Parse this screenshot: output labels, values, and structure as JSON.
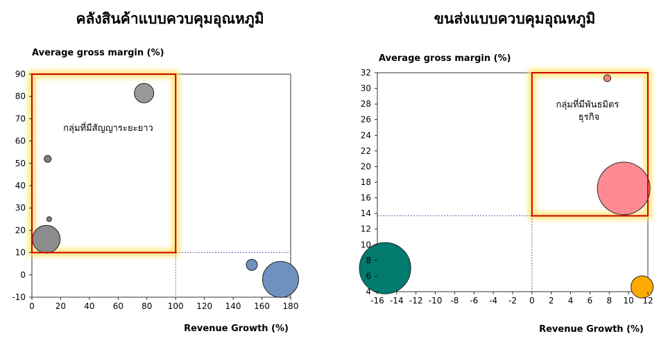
{
  "chart_data": [
    {
      "type": "bubble",
      "title": "คลังสินค้าแบบควบคุมอุณหภูมิ",
      "xlabel": "Revenue Growth (%)",
      "ylabel": "Average gross margin (%)",
      "xlim": [
        0,
        180
      ],
      "ylim": [
        -10,
        90
      ],
      "xticks": [
        0,
        20,
        40,
        60,
        80,
        100,
        120,
        140,
        160,
        180
      ],
      "yticks": [
        -10,
        0,
        10,
        20,
        30,
        40,
        50,
        60,
        70,
        80,
        90
      ],
      "grid": false,
      "reference_lines": {
        "x": 100,
        "y": 10
      },
      "highlight_region": {
        "x": [
          0,
          100
        ],
        "y": [
          10,
          90
        ],
        "label": "กลุ่มที่มีสัญญาระยะยาว"
      },
      "points": [
        {
          "x": 78,
          "y": 81.5,
          "size": 14,
          "color": "#999999"
        },
        {
          "x": 11,
          "y": 52,
          "size": 5,
          "color": "#808080"
        },
        {
          "x": 12,
          "y": 25,
          "size": 3.5,
          "color": "#808080"
        },
        {
          "x": 10,
          "y": 16,
          "size": 20,
          "color": "#8c8c8c"
        },
        {
          "x": 153,
          "y": 4.5,
          "size": 8,
          "color": "#6f90bf"
        },
        {
          "x": 173,
          "y": -2,
          "size": 26,
          "color": "#7090c0"
        }
      ]
    },
    {
      "type": "bubble",
      "title": "ขนส่งแบบควบคุมอุณหภูมิ",
      "xlabel": "Revenue Growth (%)",
      "ylabel": "Average gross margin (%)",
      "xlim": [
        -16,
        12
      ],
      "ylim": [
        4,
        32
      ],
      "xticks": [
        -16,
        -14,
        -12,
        -10,
        -8,
        -6,
        -4,
        -2,
        0,
        2,
        4,
        6,
        8,
        10,
        12
      ],
      "yticks": [
        4,
        6,
        8,
        10,
        12,
        14,
        16,
        18,
        20,
        22,
        24,
        26,
        28,
        30,
        32
      ],
      "grid": false,
      "reference_lines": {
        "x": 0,
        "y": 13.7
      },
      "highlight_region": {
        "x": [
          0,
          12
        ],
        "y": [
          13.7,
          32
        ],
        "label": "กลุ่มที่มีพันธมิตรธุรกิจ"
      },
      "points": [
        {
          "x": 7.8,
          "y": 31.3,
          "size": 5,
          "color": "#f4876f"
        },
        {
          "x": 9.5,
          "y": 17.2,
          "size": 38,
          "color": "#ff8a94"
        },
        {
          "x": -15.2,
          "y": 7,
          "size": 37,
          "color": "#007b6e"
        },
        {
          "x": 11.4,
          "y": 4.6,
          "size": 16,
          "color": "#ffaa00"
        }
      ]
    }
  ]
}
